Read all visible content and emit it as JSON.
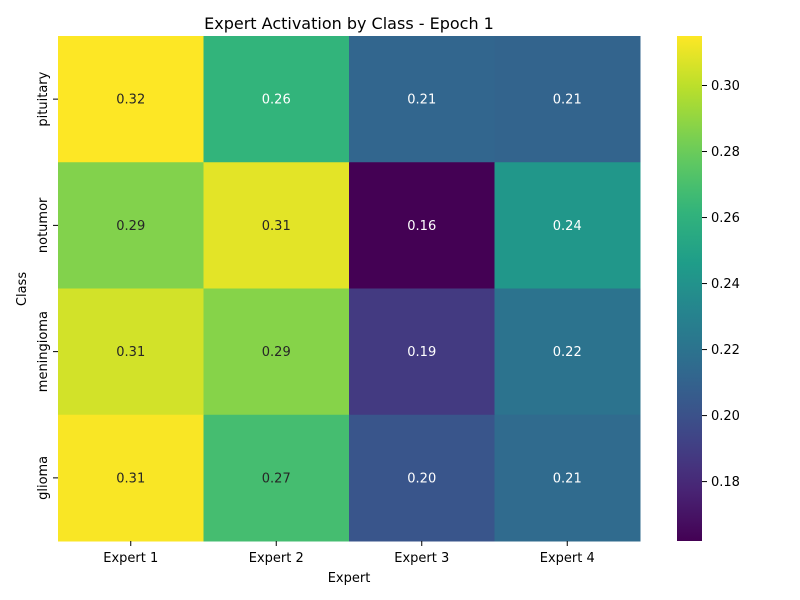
{
  "chart_data": {
    "type": "heatmap",
    "title": "Expert Activation by Class - Epoch 1",
    "xlabel": "Expert",
    "ylabel": "Class",
    "x_categories": [
      "Expert 1",
      "Expert 2",
      "Expert 3",
      "Expert 4"
    ],
    "y_categories": [
      "pituitary",
      "notumor",
      "meningioma",
      "glioma"
    ],
    "values": [
      [
        0.315,
        0.262,
        0.212,
        0.211
      ],
      [
        0.286,
        0.309,
        0.162,
        0.243
      ],
      [
        0.305,
        0.287,
        0.188,
        0.22
      ],
      [
        0.314,
        0.269,
        0.202,
        0.215
      ]
    ],
    "value_labels": [
      [
        "0.32",
        "0.26",
        "0.21",
        "0.21"
      ],
      [
        "0.29",
        "0.31",
        "0.16",
        "0.24"
      ],
      [
        "0.31",
        "0.29",
        "0.19",
        "0.22"
      ],
      [
        "0.31",
        "0.27",
        "0.20",
        "0.21"
      ]
    ],
    "colorbar": {
      "colormap": "viridis",
      "vmin": 0.162,
      "vmax": 0.315,
      "ticks": [
        0.18,
        0.2,
        0.22,
        0.24,
        0.26,
        0.28,
        0.3
      ],
      "tick_labels": [
        "0.18",
        "0.20",
        "0.22",
        "0.24",
        "0.26",
        "0.28",
        "0.30"
      ]
    },
    "grid": false,
    "legend": "colorbar-right"
  }
}
